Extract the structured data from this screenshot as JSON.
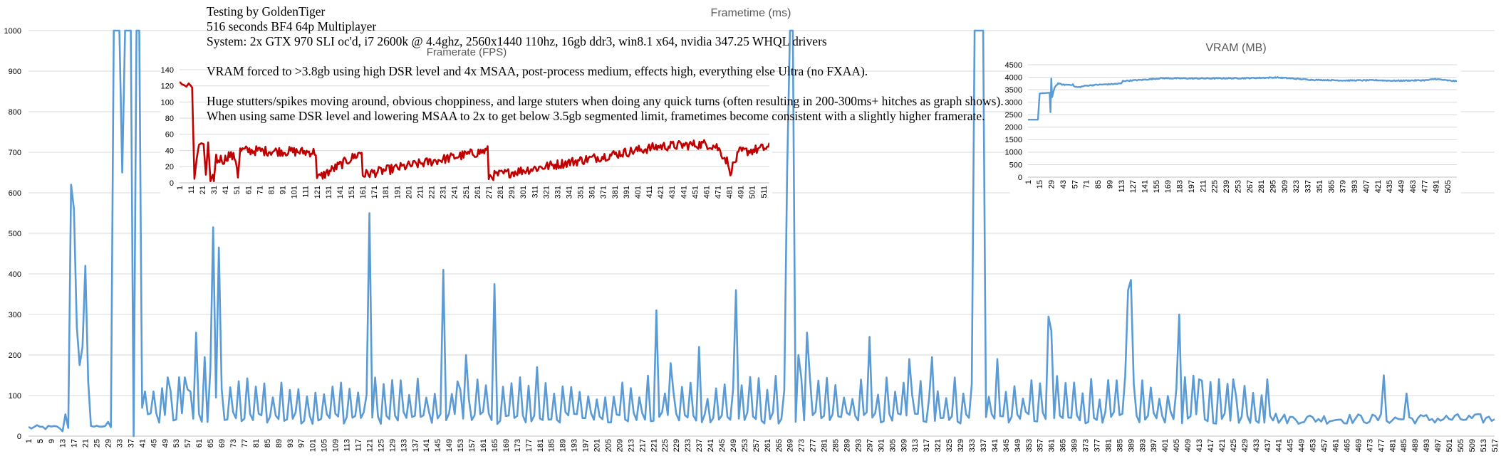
{
  "notes": {
    "line1": "Testing by GoldenTiger",
    "line2": "516 seconds BF4 64p Multiplayer",
    "line3": "System: 2x GTX 970 SLI oc'd, i7 2600k @ 4.4ghz, 2560x1440 110hz, 16gb ddr3, win8.1 x64, nvidia 347.25 WHQL drivers",
    "line4": "VRAM forced to >3.8gb using high DSR level and 4x MSAA, post-process medium, effects high, everything else Ultra (no FXAA).",
    "line5": "Huge stutters/spikes moving around, obvious choppiness, and large stuters when doing any quick turns (often resulting in 200-300ms+ hitches as graph shows). When using same DSR level and lowering MSAA to 2x to get below 3.5gb segmented limit, frametimes become consistent with a slightly higher framerate."
  },
  "colors": {
    "frametime": "#5b9bd5",
    "framerate": "#c00000",
    "vram": "#5b9bd5",
    "grid": "#d9d9d9",
    "axis_text": "#595959"
  },
  "chart_data": [
    {
      "id": "frametime",
      "type": "line",
      "title": "Frametime (ms)",
      "xlabel": "",
      "ylabel": "",
      "ylim": [
        0,
        1000
      ],
      "yticks": [
        0,
        100,
        200,
        300,
        400,
        500,
        600,
        700,
        800,
        900,
        1000
      ],
      "x_range": [
        1,
        517
      ],
      "xtick_start": 1,
      "xtick_step": 4,
      "xtick_end": 517,
      "extra_xtick": 5,
      "grid": true,
      "legend": "none",
      "baseline": 45,
      "spikes": [
        [
          13,
          12
        ],
        [
          15,
          20
        ],
        [
          16,
          620
        ],
        [
          17,
          560
        ],
        [
          18,
          270
        ],
        [
          19,
          175
        ],
        [
          20,
          220
        ],
        [
          21,
          420
        ],
        [
          22,
          135
        ],
        [
          23,
          25
        ],
        [
          28,
          25
        ],
        [
          29,
          35
        ],
        [
          30,
          22
        ],
        [
          31,
          1000
        ],
        [
          32,
          1000
        ],
        [
          33,
          1000
        ],
        [
          34,
          650
        ],
        [
          35,
          1000
        ],
        [
          36,
          1000
        ],
        [
          37,
          1000
        ],
        [
          38,
          0
        ],
        [
          39,
          1000
        ],
        [
          40,
          1000
        ],
        [
          41,
          70
        ],
        [
          42,
          110
        ],
        [
          45,
          110
        ],
        [
          50,
          145
        ],
        [
          56,
          145
        ],
        [
          58,
          110
        ],
        [
          60,
          255
        ],
        [
          63,
          195
        ],
        [
          65,
          165
        ],
        [
          66,
          515
        ],
        [
          67,
          95
        ],
        [
          68,
          465
        ],
        [
          69,
          115
        ],
        [
          84,
          130
        ],
        [
          121,
          550
        ],
        [
          147,
          410
        ],
        [
          152,
          135
        ],
        [
          155,
          200
        ],
        [
          165,
          375
        ],
        [
          180,
          170
        ],
        [
          222,
          310
        ],
        [
          227,
          180
        ],
        [
          237,
          220
        ],
        [
          250,
          360
        ],
        [
          268,
          650
        ],
        [
          269,
          1000
        ],
        [
          270,
          1000
        ],
        [
          272,
          200
        ],
        [
          275,
          255
        ],
        [
          297,
          245
        ],
        [
          311,
          190
        ],
        [
          319,
          195
        ],
        [
          334,
          1000
        ],
        [
          335,
          1000
        ],
        [
          336,
          1000
        ],
        [
          337,
          1000
        ],
        [
          342,
          190
        ],
        [
          360,
          295
        ],
        [
          361,
          260
        ],
        [
          388,
          360
        ],
        [
          389,
          385
        ],
        [
          406,
          300
        ],
        [
          413,
          140
        ],
        [
          425,
          140
        ],
        [
          437,
          140
        ],
        [
          438,
          50
        ],
        [
          478,
          150
        ],
        [
          486,
          105
        ]
      ]
    },
    {
      "id": "framerate",
      "type": "line",
      "title": "Framerate (FPS)",
      "xlabel": "",
      "ylabel": "",
      "ylim": [
        0,
        140
      ],
      "yticks": [
        0,
        20,
        40,
        60,
        80,
        100,
        120,
        140
      ],
      "x_range": [
        1,
        516
      ],
      "xtick_start": 1,
      "xtick_step": 10,
      "xtick_end": 511,
      "grid": true,
      "legend": "none",
      "baseline": 38,
      "anchors": [
        [
          1,
          125
        ],
        [
          3,
          122
        ],
        [
          5,
          121
        ],
        [
          7,
          119
        ],
        [
          9,
          123
        ],
        [
          11,
          120
        ],
        [
          12,
          118
        ],
        [
          13,
          60
        ],
        [
          14,
          5
        ],
        [
          16,
          30
        ],
        [
          18,
          47
        ],
        [
          20,
          49
        ],
        [
          22,
          48
        ],
        [
          24,
          10
        ],
        [
          26,
          50
        ],
        [
          28,
          2
        ],
        [
          30,
          10
        ],
        [
          31,
          2
        ],
        [
          33,
          35
        ],
        [
          34,
          25
        ],
        [
          36,
          30
        ],
        [
          40,
          28
        ],
        [
          44,
          35
        ],
        [
          50,
          30
        ],
        [
          52,
          10
        ],
        [
          54,
          40
        ],
        [
          60,
          40
        ],
        [
          120,
          38
        ],
        [
          121,
          5
        ],
        [
          160,
          38
        ],
        [
          161,
          10
        ],
        [
          270,
          40
        ],
        [
          271,
          8
        ],
        [
          420,
          45
        ],
        [
          460,
          48
        ],
        [
          470,
          45
        ],
        [
          480,
          25
        ],
        [
          481,
          12
        ],
        [
          490,
          38
        ],
        [
          500,
          40
        ],
        [
          516,
          44
        ]
      ]
    },
    {
      "id": "vram",
      "type": "line",
      "title": "VRAM (MB)",
      "xlabel": "",
      "ylabel": "",
      "ylim": [
        0,
        4500
      ],
      "yticks": [
        0,
        500,
        1000,
        1500,
        2000,
        2500,
        3000,
        3500,
        4000,
        4500
      ],
      "x_range": [
        1,
        516
      ],
      "xtick_start": 1,
      "xtick_step": 14,
      "xtick_end": 505,
      "grid": true,
      "legend": "none",
      "anchors": [
        [
          1,
          2300
        ],
        [
          13,
          2300
        ],
        [
          15,
          3350
        ],
        [
          27,
          3380
        ],
        [
          28,
          2600
        ],
        [
          29,
          3950
        ],
        [
          30,
          3200
        ],
        [
          33,
          3600
        ],
        [
          37,
          3750
        ],
        [
          43,
          3700
        ],
        [
          55,
          3700
        ],
        [
          57,
          3620
        ],
        [
          62,
          3600
        ],
        [
          70,
          3660
        ],
        [
          85,
          3700
        ],
        [
          100,
          3720
        ],
        [
          113,
          3750
        ],
        [
          115,
          3850
        ],
        [
          140,
          3900
        ],
        [
          160,
          3960
        ],
        [
          200,
          3950
        ],
        [
          260,
          3960
        ],
        [
          300,
          3990
        ],
        [
          340,
          3900
        ],
        [
          380,
          3870
        ],
        [
          420,
          3880
        ],
        [
          440,
          3860
        ],
        [
          480,
          3880
        ],
        [
          490,
          3930
        ],
        [
          505,
          3870
        ],
        [
          516,
          3840
        ]
      ]
    }
  ]
}
